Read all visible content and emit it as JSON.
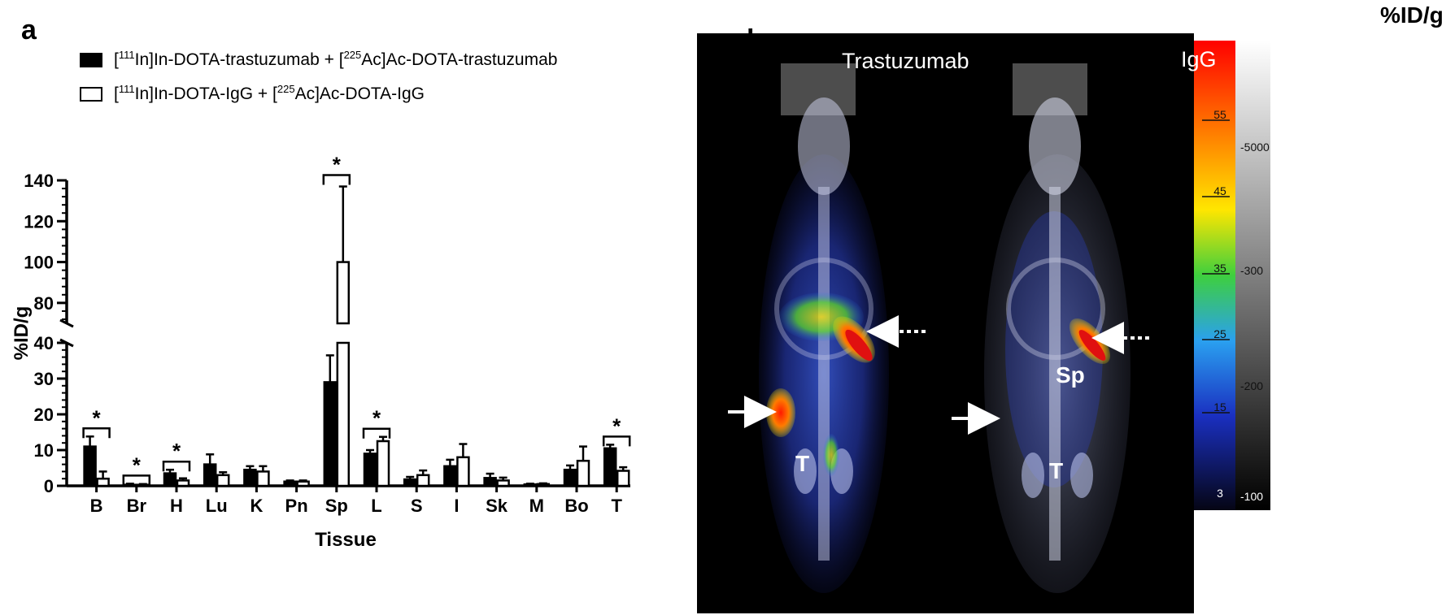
{
  "panel_a": {
    "letter": "a"
  },
  "panel_b": {
    "letter": "b",
    "image_labels": [
      "Trastuzumab",
      "IgG"
    ],
    "arrow_labels": {
      "sp": "Sp",
      "t": "T"
    },
    "colorbar": {
      "unit": "%ID/g",
      "color_ticks": [
        "55",
        "45",
        "35",
        "25",
        "15",
        "3"
      ],
      "gray_ticks": [
        "5000",
        "300",
        "200",
        "100"
      ],
      "gray_ticks_printed": [
        "-5000",
        "-300",
        "-200",
        "-100"
      ]
    }
  },
  "legend": [
    {
      "pre": "[",
      "sup1": "111",
      "mid": "In]In-DOTA-trastuzumab + [",
      "sup2": "225",
      "post": "Ac]Ac-DOTA-trastuzumab",
      "fill": "#000000"
    },
    {
      "pre": "[",
      "sup1": "111",
      "mid": "In]In-DOTA-IgG + [",
      "sup2": "225",
      "post": "Ac]Ac-DOTA-IgG",
      "fill": "#ffffff"
    }
  ],
  "chart_data": {
    "type": "bar",
    "xlabel": "Tissue",
    "ylabel": "%ID/g",
    "categories": [
      "B",
      "Br",
      "H",
      "Lu",
      "K",
      "Pn",
      "Sp",
      "L",
      "S",
      "I",
      "Sk",
      "M",
      "Bo",
      "T"
    ],
    "series": [
      {
        "name": "[111In]In-DOTA-trastuzumab + [225Ac]Ac-DOTA-trastuzumab",
        "color": "#000000",
        "values": [
          11,
          0.3,
          3.5,
          6,
          4.5,
          1.2,
          29,
          9,
          1.8,
          5.5,
          2.2,
          0.4,
          4.5,
          10.5
        ],
        "errors": [
          2.8,
          0.3,
          1.0,
          2.8,
          1.0,
          0.3,
          7.5,
          1.0,
          0.7,
          1.8,
          1.2,
          0.2,
          1.2,
          1.0
        ]
      },
      {
        "name": "[111In]In-DOTA-IgG + [225Ac]Ac-DOTA-IgG",
        "color": "#ffffff",
        "values": [
          2,
          0.3,
          1.5,
          3,
          4,
          1.2,
          100,
          12.5,
          3,
          8,
          1.5,
          0.5,
          7,
          4.2
        ],
        "errors": [
          2,
          0.2,
          0.6,
          0.8,
          1.5,
          0.3,
          37,
          1.2,
          1.3,
          3.7,
          0.8,
          0.2,
          4,
          1.0
        ]
      }
    ],
    "y_axis_break": {
      "lower_range": [
        0,
        40
      ],
      "upper_range": [
        70,
        140
      ]
    },
    "lower_ticks": [
      "0",
      "10",
      "20",
      "30",
      "40"
    ],
    "upper_ticks": [
      "80",
      "100",
      "120",
      "140"
    ],
    "significance": {
      "symbol": "*",
      "categories": [
        "B",
        "Br",
        "H",
        "Sp",
        "L",
        "T"
      ]
    },
    "grid": false
  }
}
